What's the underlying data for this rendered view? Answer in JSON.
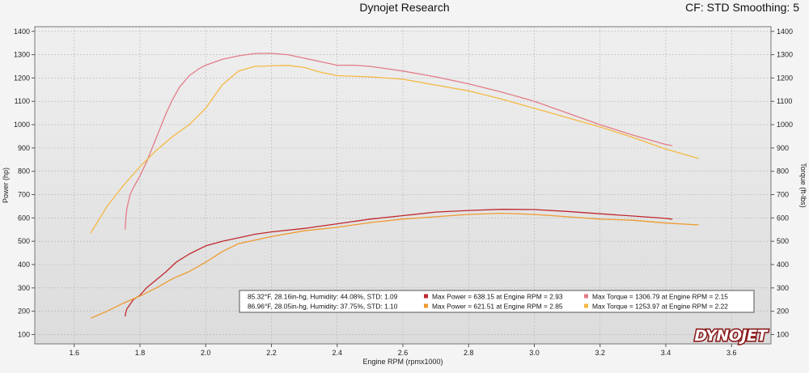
{
  "header": {
    "title": "Dynojet Research",
    "right": "CF: STD Smoothing: 5"
  },
  "logo": {
    "text": "DYNOJET"
  },
  "colors": {
    "run1_power": "#c0282e",
    "run1_torque": "#e37c86",
    "run2_power": "#ee9a2f",
    "run2_torque": "#f4b942"
  },
  "legend": {
    "rows": [
      {
        "conditions": "85.32°F, 28.16in-hg, Humidity: 44.08%, STD: 1.09",
        "max_power": "Max Power = 638.15 at Engine RPM = 2.93",
        "max_torque": "Max Torque = 1306.79 at Engine RPM = 2.15"
      },
      {
        "conditions": "86.96°F, 28.05in-hg, Humidity: 37.75%, STD: 1.10",
        "max_power": "Max Power = 621.51 at Engine RPM = 2.85",
        "max_torque": "Max Torque = 1253.97 at Engine RPM = 2.22"
      }
    ]
  },
  "chart_data": {
    "type": "line",
    "xlabel": "Engine RPM (rpmx1000)",
    "ylabel": "Power (hp)",
    "y2label": "Torque (ft-lbs)",
    "xlim": [
      1.48,
      3.72
    ],
    "ylim": [
      60,
      1420
    ],
    "y2lim": [
      60,
      1420
    ],
    "x_ticks": [
      "1.6",
      "1.8",
      "2.0",
      "2.2",
      "2.4",
      "2.6",
      "2.8",
      "3.0",
      "3.2",
      "3.4",
      "3.6"
    ],
    "y_ticks": [
      "100",
      "200",
      "300",
      "400",
      "500",
      "600",
      "700",
      "800",
      "900",
      "1000",
      "1100",
      "1200",
      "1300",
      "1400"
    ],
    "y2_ticks": [
      "100",
      "200",
      "300",
      "400",
      "500",
      "600",
      "700",
      "800",
      "900",
      "1000",
      "1100",
      "1200",
      "1300",
      "1400"
    ],
    "grid": true,
    "series": [
      {
        "key": "run1_torque",
        "color": "#e37c86",
        "x": [
          1.755,
          1.757,
          1.76,
          1.77,
          1.78,
          1.8,
          1.82,
          1.84,
          1.86,
          1.88,
          1.9,
          1.92,
          1.95,
          1.98,
          2.0,
          2.05,
          2.1,
          2.15,
          2.2,
          2.25,
          2.3,
          2.35,
          2.4,
          2.45,
          2.5,
          2.55,
          2.6,
          2.7,
          2.8,
          2.9,
          3.0,
          3.1,
          3.2,
          3.3,
          3.4,
          3.42
        ],
        "y": [
          550,
          600,
          640,
          700,
          730,
          780,
          840,
          910,
          980,
          1050,
          1110,
          1160,
          1210,
          1240,
          1255,
          1280,
          1295,
          1305,
          1306,
          1300,
          1285,
          1270,
          1255,
          1255,
          1250,
          1240,
          1230,
          1205,
          1175,
          1140,
          1100,
          1050,
          1000,
          955,
          915,
          910
        ]
      },
      {
        "key": "run2_torque",
        "color": "#f4b942",
        "x": [
          1.65,
          1.7,
          1.75,
          1.8,
          1.85,
          1.9,
          1.95,
          2.0,
          2.05,
          2.1,
          2.15,
          2.2,
          2.25,
          2.3,
          2.35,
          2.4,
          2.5,
          2.6,
          2.7,
          2.8,
          2.9,
          3.0,
          3.1,
          3.2,
          3.3,
          3.4,
          3.5
        ],
        "y": [
          535,
          650,
          740,
          820,
          890,
          950,
          1000,
          1070,
          1170,
          1230,
          1250,
          1252,
          1254,
          1245,
          1225,
          1210,
          1205,
          1195,
          1170,
          1145,
          1110,
          1070,
          1030,
          990,
          945,
          895,
          855
        ]
      },
      {
        "key": "run1_power",
        "color": "#c0282e",
        "x": [
          1.755,
          1.757,
          1.76,
          1.78,
          1.8,
          1.82,
          1.85,
          1.88,
          1.91,
          1.95,
          2.0,
          2.05,
          2.1,
          2.15,
          2.2,
          2.3,
          2.4,
          2.5,
          2.6,
          2.7,
          2.8,
          2.9,
          3.0,
          3.1,
          3.2,
          3.3,
          3.4,
          3.42
        ],
        "y": [
          178,
          195,
          210,
          250,
          268,
          300,
          335,
          370,
          410,
          445,
          480,
          500,
          515,
          530,
          540,
          555,
          575,
          595,
          610,
          625,
          632,
          637,
          636,
          628,
          618,
          608,
          598,
          595
        ]
      },
      {
        "key": "run2_power",
        "color": "#ee9a2f",
        "x": [
          1.65,
          1.7,
          1.75,
          1.8,
          1.85,
          1.9,
          1.95,
          2.0,
          2.05,
          2.1,
          2.2,
          2.3,
          2.4,
          2.5,
          2.6,
          2.7,
          2.8,
          2.9,
          3.0,
          3.1,
          3.2,
          3.3,
          3.4,
          3.5
        ],
        "y": [
          170,
          200,
          235,
          265,
          300,
          340,
          370,
          410,
          455,
          490,
          520,
          545,
          560,
          580,
          595,
          605,
          615,
          620,
          615,
          605,
          595,
          590,
          578,
          570
        ]
      }
    ]
  }
}
